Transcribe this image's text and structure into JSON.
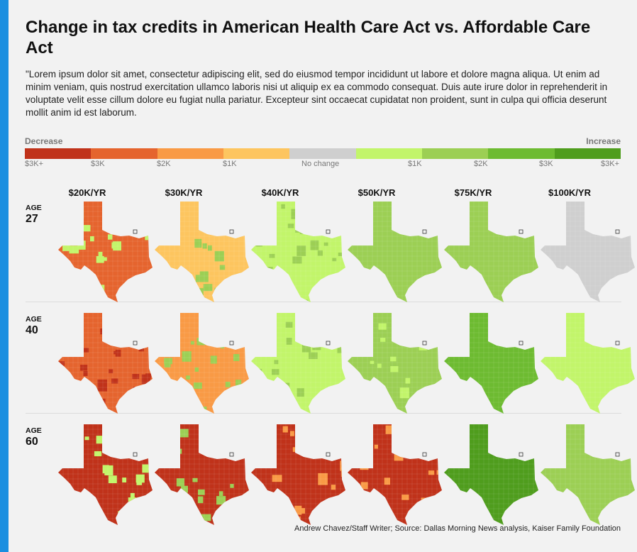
{
  "title": "Change in tax credits in American Health Care Act vs. Affordable Care Act",
  "description": "\"Lorem ipsum dolor sit amet, consectetur adipiscing elit, sed do eiusmod tempor incididunt ut labore et dolore magna aliqua. Ut enim ad minim veniam, quis nostrud exercitation ullamco laboris nisi ut aliquip ex ea commodo consequat. Duis aute irure dolor in reprehenderit in voluptate velit esse cillum dolore eu fugiat nulla pariatur. Excepteur sint occaecat cupidatat non proident, sunt in culpa qui officia deserunt mollit anim id est laborum.",
  "source": "Andrew Chavez/Staff Writer; Source: Dallas Morning News analysis, Kaiser Family Foundation",
  "chart_data": {
    "type": "heatmap",
    "legend": {
      "left_label": "Decrease",
      "right_label": "Increase",
      "colors": [
        "#c0321a",
        "#e5642e",
        "#f99a45",
        "#fdc55f",
        "#cfcfcf",
        "#c2f56a",
        "#9ccf54",
        "#6dbb31",
        "#4f9d1d"
      ],
      "ticks": [
        "$3K+",
        "$3K",
        "$2K",
        "$1K",
        "No change",
        "$1K",
        "$2K",
        "$3K",
        "$3K+"
      ]
    },
    "columns": [
      "$20K/YR",
      "$30K/YR",
      "$40K/YR",
      "$50K/YR",
      "$75K/YR",
      "$100K/YR"
    ],
    "rows": [
      {
        "age_word": "AGE",
        "age": "27",
        "dominant": [
          "#e5642e",
          "#fdc55f",
          "#c2f56a",
          "#9ccf54",
          "#9ccf54",
          "#cfcfcf"
        ],
        "accent": [
          "#c2f56a",
          "#9ccf54",
          "#9ccf54",
          "#9ccf54",
          "#9ccf54",
          "#cfcfcf"
        ]
      },
      {
        "age_word": "AGE",
        "age": "40",
        "dominant": [
          "#e5642e",
          "#f99a45",
          "#c2f56a",
          "#9ccf54",
          "#6dbb31",
          "#c2f56a"
        ],
        "accent": [
          "#c0321a",
          "#9ccf54",
          "#9ccf54",
          "#c2f56a",
          "#6dbb31",
          "#c2f56a"
        ]
      },
      {
        "age_word": "AGE",
        "age": "60",
        "dominant": [
          "#c0321a",
          "#c0321a",
          "#c0321a",
          "#c0321a",
          "#4f9d1d",
          "#9ccf54"
        ],
        "accent": [
          "#c2f56a",
          "#9ccf54",
          "#f99a45",
          "#f99a45",
          "#4f9d1d",
          "#9ccf54"
        ]
      }
    ]
  }
}
